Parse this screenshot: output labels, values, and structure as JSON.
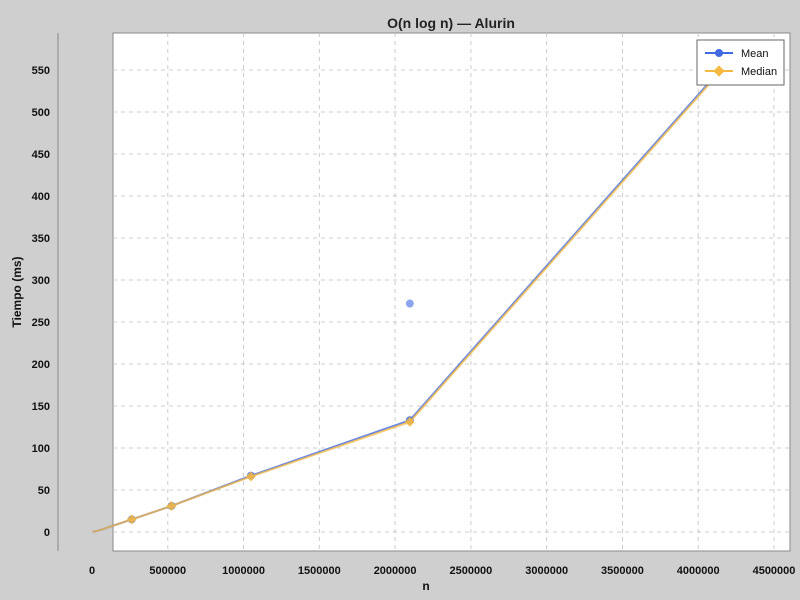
{
  "chart_data": {
    "type": "line",
    "title": "O(n log n) — Alurin",
    "xlabel": "n",
    "ylabel": "Tiempo (ms)",
    "xlim": [
      0,
      4700000
    ],
    "ylim": [
      -20,
      590
    ],
    "xticks": [
      0,
      500000,
      1000000,
      1500000,
      2000000,
      2500000,
      3000000,
      3500000,
      4000000,
      4500000
    ],
    "xtick_labels": [
      "0",
      "500000",
      "1000000",
      "1500000",
      "2000000",
      "2500000",
      "3000000",
      "3500000",
      "4000000",
      "4500000"
    ],
    "yticks": [
      0,
      50,
      100,
      150,
      200,
      250,
      300,
      350,
      400,
      450,
      500,
      550
    ],
    "ytick_labels": [
      "0",
      "50",
      "100",
      "150",
      "200",
      "250",
      "300",
      "350",
      "400",
      "450",
      "500",
      "550"
    ],
    "grid": true,
    "legend_position": "top-right",
    "series": [
      {
        "name": "Mean",
        "color": "#4169e1",
        "marker": "circle",
        "x": [
          4096,
          8192,
          16384,
          32768,
          65536,
          131072,
          262144,
          524288,
          1048576,
          2097152,
          4194304
        ],
        "y": [
          0.1,
          0.3,
          0.6,
          1.3,
          3,
          7,
          15,
          31,
          67,
          133,
          560
        ]
      },
      {
        "name": "Median",
        "color": "#f5b942",
        "marker": "diamond",
        "x": [
          4096,
          8192,
          16384,
          32768,
          65536,
          131072,
          262144,
          524288,
          1048576,
          2097152,
          4194304
        ],
        "y": [
          0.1,
          0.3,
          0.6,
          1.3,
          3,
          7,
          15,
          31,
          66,
          131,
          558
        ]
      }
    ],
    "annotations": [
      {
        "x": 2097152,
        "y": 272,
        "series": "Mean"
      }
    ]
  }
}
